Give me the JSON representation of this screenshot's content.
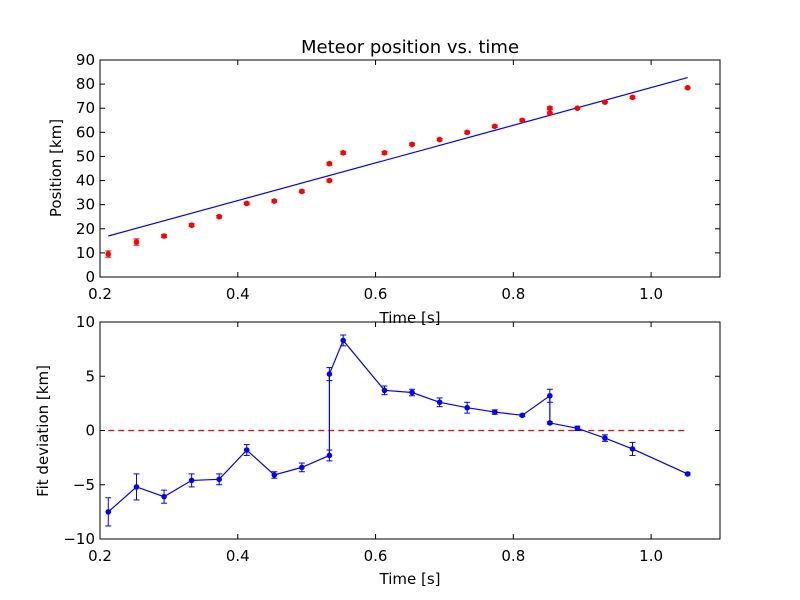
{
  "chart_data": [
    {
      "type": "scatter",
      "title": "Meteor position vs. time",
      "xlabel": "Time [s]",
      "ylabel": "Position [km]",
      "xlim": [
        0.2,
        1.1
      ],
      "ylim": [
        0,
        90
      ],
      "xticks": [
        "0.2",
        "0.4",
        "0.6",
        "0.8",
        "1.0"
      ],
      "yticks": [
        "0",
        "10",
        "20",
        "30",
        "40",
        "50",
        "60",
        "70",
        "80",
        "90"
      ],
      "grid": false,
      "colors": {
        "points": "#ff0000",
        "fit": "#0000ff"
      },
      "series": [
        {
          "kind": "points-with-error",
          "x": [
            0.212,
            0.253,
            0.293,
            0.333,
            0.373,
            0.413,
            0.453,
            0.493,
            0.533,
            0.533,
            0.553,
            0.613,
            0.653,
            0.693,
            0.733,
            0.773,
            0.813,
            0.853,
            0.853,
            0.893,
            0.933,
            0.973,
            1.053
          ],
          "y": [
            9.5,
            14.5,
            17.0,
            21.5,
            25.0,
            30.5,
            31.5,
            35.5,
            40.0,
            47.0,
            51.5,
            51.5,
            55.0,
            57.0,
            60.0,
            62.5,
            65.0,
            68.0,
            70.0,
            70.0,
            72.5,
            74.5,
            78.5
          ],
          "err": [
            1.3,
            1.3,
            0.6,
            0.6,
            0.5,
            0.5,
            0.5,
            0.5,
            0.5,
            0.6,
            0.6,
            0.6,
            0.5,
            0.5,
            0.5,
            0.5,
            0.4,
            0.4,
            0.6,
            0.3,
            0.3,
            0.5,
            0.3
          ]
        },
        {
          "kind": "fit-line",
          "x": [
            0.212,
            1.053
          ],
          "y": [
            17.0,
            82.7
          ]
        }
      ]
    },
    {
      "type": "line",
      "xlabel": "Time [s]",
      "ylabel": "Fit deviation [km]",
      "xlim": [
        0.2,
        1.1
      ],
      "ylim": [
        -10,
        10
      ],
      "xticks": [
        "0.2",
        "0.4",
        "0.6",
        "0.8",
        "1.0"
      ],
      "yticks": [
        "−10",
        "−5",
        "0",
        "5",
        "10"
      ],
      "grid": false,
      "colors": {
        "line": "#0000ff",
        "reference": "#ff0000"
      },
      "reference_line": {
        "y": 0,
        "x": [
          0.212,
          1.053
        ],
        "style": "dashed"
      },
      "series": [
        {
          "x": [
            0.212,
            0.253,
            0.293,
            0.333,
            0.373,
            0.413,
            0.453,
            0.493,
            0.533,
            0.533,
            0.553,
            0.613,
            0.653,
            0.693,
            0.733,
            0.773,
            0.813,
            0.853,
            0.853,
            0.893,
            0.933,
            0.973,
            1.053
          ],
          "y": [
            -7.5,
            -5.2,
            -6.1,
            -4.6,
            -4.5,
            -1.8,
            -4.1,
            -3.4,
            -2.3,
            5.2,
            8.3,
            3.7,
            3.5,
            2.6,
            2.1,
            1.7,
            1.4,
            3.2,
            0.7,
            0.2,
            -0.7,
            -1.7,
            -4.0
          ],
          "err": [
            1.3,
            1.2,
            0.6,
            0.6,
            0.5,
            0.5,
            0.3,
            0.4,
            0.5,
            0.6,
            0.5,
            0.4,
            0.3,
            0.4,
            0.5,
            0.2,
            0.1,
            0.6,
            0.1,
            0.2,
            0.3,
            0.6,
            0.1
          ]
        }
      ]
    }
  ]
}
